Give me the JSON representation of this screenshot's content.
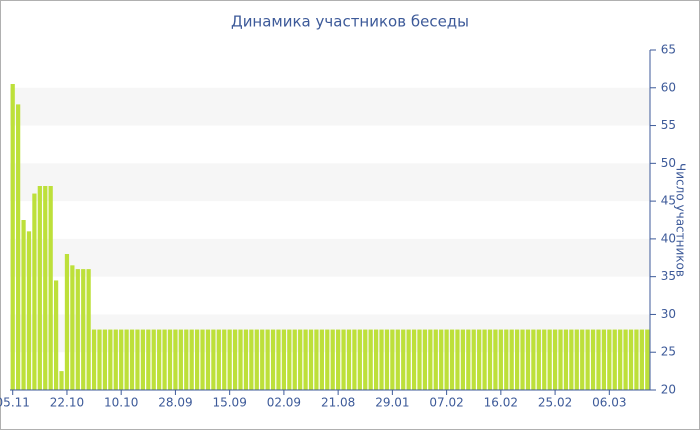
{
  "chart_data": {
    "type": "bar",
    "title": "Динамика участников беседы",
    "y_label": "Число участников",
    "categories": [
      "05.11",
      null,
      null,
      null,
      null,
      null,
      null,
      null,
      null,
      null,
      "22.10",
      null,
      null,
      null,
      null,
      null,
      null,
      null,
      null,
      null,
      "10.10",
      null,
      null,
      null,
      null,
      null,
      null,
      null,
      null,
      null,
      "28.09",
      null,
      null,
      null,
      null,
      null,
      null,
      null,
      null,
      null,
      "15.09",
      null,
      null,
      null,
      null,
      null,
      null,
      null,
      null,
      null,
      "02.09",
      null,
      null,
      null,
      null,
      null,
      null,
      null,
      null,
      null,
      "21.08",
      null,
      null,
      null,
      null,
      null,
      null,
      null,
      null,
      null,
      "29.01",
      null,
      null,
      null,
      null,
      null,
      null,
      null,
      null,
      null,
      "07.02",
      null,
      null,
      null,
      null,
      null,
      null,
      null,
      null,
      null,
      "16.02",
      null,
      null,
      null,
      null,
      null,
      null,
      null,
      null,
      null,
      "25.02",
      null,
      null,
      null,
      null,
      null,
      null,
      null,
      null,
      null,
      "06.03",
      null,
      null,
      null,
      null,
      null,
      null,
      null
    ],
    "values": [
      60.5,
      57.8,
      42.5,
      41,
      46,
      47,
      47,
      47,
      34.5,
      22.5,
      38,
      36.5,
      36,
      36,
      36,
      28,
      28,
      28,
      28,
      28,
      28,
      28,
      28,
      28,
      28,
      28,
      28,
      28,
      28,
      28,
      28,
      28,
      28,
      28,
      28,
      28,
      28,
      28,
      28,
      28,
      28,
      28,
      28,
      28,
      28,
      28,
      28,
      28,
      28,
      28,
      28,
      28,
      28,
      28,
      28,
      28,
      28,
      28,
      28,
      28,
      28,
      28,
      28,
      28,
      28,
      28,
      28,
      28,
      28,
      28,
      28,
      28,
      28,
      28,
      28,
      28,
      28,
      28,
      28,
      28,
      28,
      28,
      28,
      28,
      28,
      28,
      28,
      28,
      28,
      28,
      28,
      28,
      28,
      28,
      28,
      28,
      28,
      28,
      28,
      28,
      28,
      28,
      28,
      28,
      28,
      28,
      28,
      28,
      28,
      28,
      28,
      28,
      28,
      28,
      28,
      28,
      28,
      28
    ],
    "color": "#bde03a",
    "ylim": [
      20,
      65
    ],
    "yticks": [
      20,
      25,
      30,
      35,
      40,
      45,
      50,
      55,
      60,
      65
    ],
    "grid": true
  }
}
